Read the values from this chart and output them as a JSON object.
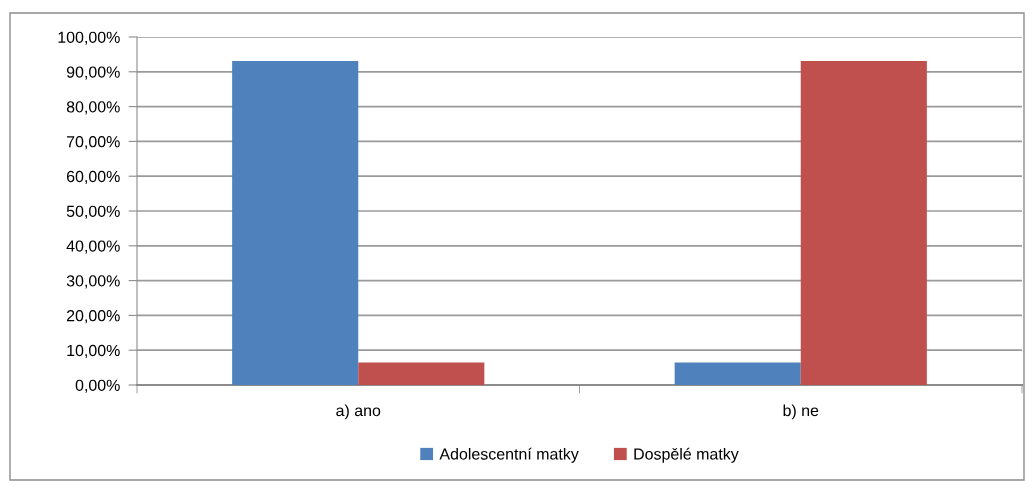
{
  "chart_data": {
    "type": "bar",
    "categories": [
      "a) ano",
      "b) ne"
    ],
    "series": [
      {
        "name": "Adolescentní matky",
        "color": "#4f81bd",
        "values": [
          93.1,
          6.5
        ]
      },
      {
        "name": "Dospělé matky",
        "color": "#c0504d",
        "values": [
          6.5,
          93.1
        ]
      }
    ],
    "ylim": [
      0,
      100
    ],
    "yticks": [
      {
        "value": 0,
        "label": "0,00%"
      },
      {
        "value": 10,
        "label": "10,00%"
      },
      {
        "value": 20,
        "label": "20,00%"
      },
      {
        "value": 30,
        "label": "30,00%"
      },
      {
        "value": 40,
        "label": "40,00%"
      },
      {
        "value": 50,
        "label": "50,00%"
      },
      {
        "value": 60,
        "label": "60,00%"
      },
      {
        "value": 70,
        "label": "70,00%"
      },
      {
        "value": 80,
        "label": "80,00%"
      },
      {
        "value": 90,
        "label": "90,00%"
      },
      {
        "value": 100,
        "label": "100,00%"
      }
    ],
    "grid": "y",
    "legend": "bottom"
  }
}
